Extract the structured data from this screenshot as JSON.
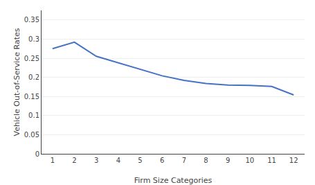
{
  "chart_data": {
    "type": "line",
    "xlabel": "Firm Size Categories",
    "ylabel": "Vehicle Out-of-Service Rates",
    "x": [
      1,
      2,
      3,
      4,
      5,
      6,
      7,
      8,
      9,
      10,
      11,
      12
    ],
    "values": [
      0.275,
      0.292,
      0.255,
      0.238,
      0.22,
      0.204,
      0.192,
      0.184,
      0.18,
      0.179,
      0.176,
      0.154
    ],
    "color": "#4472C4",
    "xlim": [
      0.5,
      12.5
    ],
    "xticks": [
      1,
      2,
      3,
      4,
      5,
      6,
      7,
      8,
      9,
      10,
      11,
      12
    ],
    "ylim": [
      0,
      0.375
    ],
    "yticks": [
      0,
      0.05,
      0.1,
      0.15,
      0.2,
      0.25,
      0.3,
      0.35
    ],
    "grid": true
  }
}
